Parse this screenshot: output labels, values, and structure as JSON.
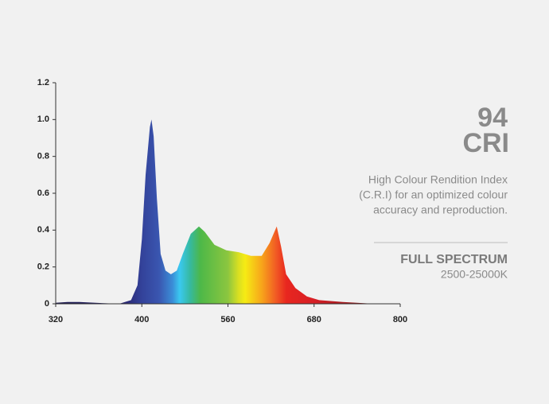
{
  "chart_data": {
    "type": "area",
    "x": [
      320,
      331,
      342,
      357,
      379,
      390,
      396,
      400,
      407,
      415,
      418,
      422,
      428,
      435,
      444,
      454,
      465,
      476,
      491,
      506,
      517,
      535,
      557,
      575,
      592,
      607,
      618,
      628,
      634,
      641,
      654,
      670,
      687,
      720,
      764,
      800
    ],
    "values": [
      0.005,
      0.01,
      0.01,
      0.005,
      0,
      0.02,
      0.1,
      0.35,
      0.7,
      0.96,
      1.0,
      0.91,
      0.57,
      0.27,
      0.18,
      0.16,
      0.18,
      0.27,
      0.38,
      0.42,
      0.39,
      0.32,
      0.29,
      0.28,
      0.26,
      0.26,
      0.33,
      0.42,
      0.31,
      0.16,
      0.085,
      0.04,
      0.02,
      0.01,
      0,
      0
    ],
    "xlim": [
      320,
      800
    ],
    "xticks": [
      320,
      400,
      560,
      680,
      800
    ],
    "ylim": [
      0,
      1.2
    ],
    "yticks": [
      0,
      0.2,
      0.4,
      0.6,
      0.8,
      {
        "value": 1,
        "label": "1.0"
      },
      1.2
    ]
  },
  "panel": {
    "big_number": "94",
    "big_label": "CRI",
    "description": [
      "High Colour Rendition Index",
      "(C.R.I) for an optimized colour",
      "accuracy and reproduction."
    ],
    "feature_title": "FULL SPECTRUM",
    "feature_detail": "2500-25000K"
  }
}
